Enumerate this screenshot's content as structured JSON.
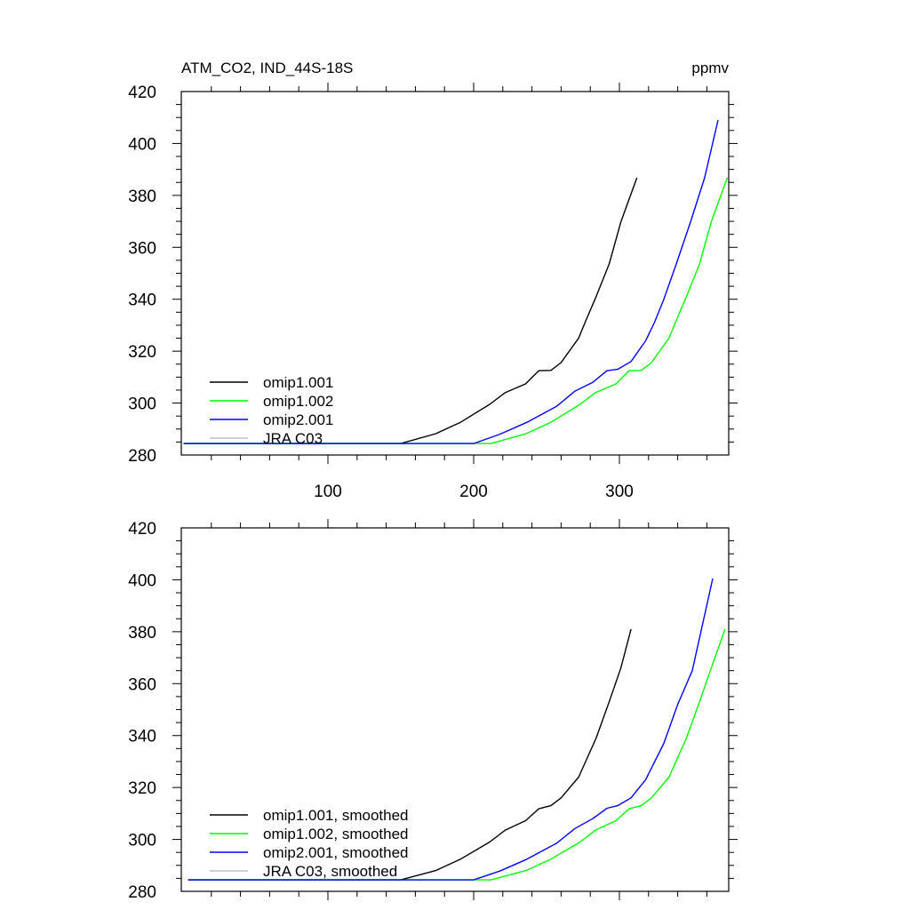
{
  "chart_data": [
    {
      "type": "line",
      "title": "ATM_CO2, IND_44S-18S",
      "units": "ppmv",
      "xlim": [
        0,
        375
      ],
      "ylim": [
        280,
        420
      ],
      "xticks": [
        100,
        200,
        300
      ],
      "xtick_labels": [
        "100",
        "200",
        "300"
      ],
      "yticks": [
        280,
        300,
        320,
        340,
        360,
        380,
        400,
        420
      ],
      "ytick_labels": [
        "280",
        "300",
        "320",
        "340",
        "360",
        "380",
        "400",
        "420"
      ],
      "legend_position": "bottom-left",
      "series": [
        {
          "name": "omip1.001",
          "color": "#000000",
          "x": [
            1,
            150,
            174,
            191,
            211,
            221.5,
            235.6,
            244.7,
            253,
            260,
            272,
            276.4,
            284,
            293,
            301,
            312
          ],
          "y": [
            284.4,
            284.4,
            288.2,
            292.6,
            299.5,
            304,
            307.4,
            312.5,
            312.6,
            315.6,
            325,
            331,
            341,
            353.6,
            369.7,
            386.8
          ]
        },
        {
          "name": "omip1.002",
          "color": "#00ff00",
          "x": [
            1,
            212,
            236,
            253,
            273,
            283.5,
            297.6,
            306.7,
            315,
            322,
            334,
            338.4,
            346,
            355,
            363,
            374
          ],
          "y": [
            284.4,
            284.4,
            288.2,
            292.6,
            299.5,
            304,
            307.4,
            312.5,
            312.6,
            315.6,
            325,
            331,
            341,
            353.6,
            369.7,
            386.8
          ]
        },
        {
          "name": "omip2.001",
          "color": "#0000ff",
          "x": [
            1,
            200,
            218,
            236.6,
            257,
            269.5,
            281.7,
            291.5,
            298.8,
            308,
            318,
            324,
            330.5,
            338.4,
            348.8,
            358.5,
            367.7
          ],
          "y": [
            284.4,
            284.4,
            288,
            292.6,
            298.8,
            304.6,
            308,
            312.5,
            313,
            316,
            324,
            331,
            340,
            352.6,
            369.7,
            386.8,
            409
          ]
        },
        {
          "name": "JRA C03",
          "color": "#c0c0c0",
          "x": [],
          "y": []
        }
      ]
    },
    {
      "type": "line",
      "title": "",
      "xlim": [
        0,
        375
      ],
      "ylim": [
        280,
        420
      ],
      "xticks": [
        100,
        200,
        300
      ],
      "yticks": [
        280,
        300,
        320,
        340,
        360,
        380,
        400,
        420
      ],
      "ytick_labels": [
        "280",
        "300",
        "320",
        "340",
        "360",
        "380",
        "400",
        "420"
      ],
      "legend_position": "bottom-left",
      "series": [
        {
          "name": "omip1.001, smoothed",
          "color": "#000000",
          "x": [
            4,
            150,
            174,
            191,
            211,
            221.5,
            235.6,
            244.7,
            253,
            260,
            272,
            284,
            293,
            301,
            308
          ],
          "y": [
            284.4,
            284.4,
            288,
            292.4,
            299,
            303.5,
            307.2,
            311.8,
            313,
            316,
            324,
            339,
            353,
            366,
            381
          ]
        },
        {
          "name": "omip1.002, smoothed",
          "color": "#00ff00",
          "x": [
            4,
            212,
            236,
            253,
            273,
            283.5,
            297.6,
            306.7,
            315,
            322,
            334,
            346,
            355,
            363,
            372.5
          ],
          "y": [
            284.4,
            284.4,
            288,
            292.4,
            299,
            303.5,
            307.2,
            311.8,
            313,
            316,
            324,
            339,
            353,
            366,
            381
          ]
        },
        {
          "name": "omip2.001, smoothed",
          "color": "#0000ff",
          "x": [
            4,
            200,
            218,
            236.6,
            257,
            269.5,
            281.7,
            291.5,
            298.8,
            308,
            318,
            330.5,
            340,
            350,
            364
          ],
          "y": [
            284.4,
            284.4,
            287.8,
            292.4,
            298.6,
            304.2,
            308,
            312,
            313,
            316,
            323,
            337,
            352,
            365,
            400.5
          ]
        },
        {
          "name": "JRA C03, smoothed",
          "color": "#c0c0c0",
          "x": [],
          "y": []
        }
      ]
    }
  ]
}
